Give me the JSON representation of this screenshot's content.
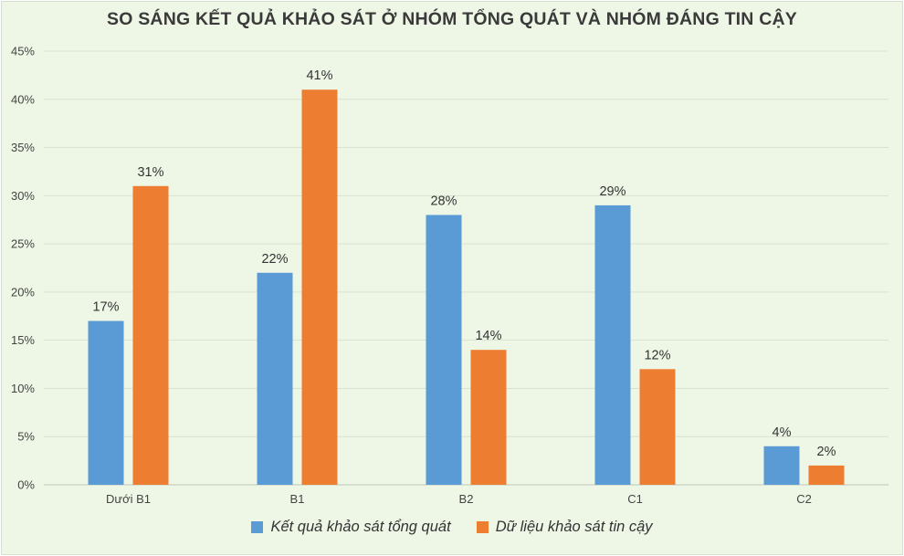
{
  "chart_data": {
    "type": "bar",
    "title": "SO SÁNG KẾT QUẢ KHẢO SÁT Ở NHÓM TỔNG QUÁT VÀ NHÓM ĐÁNG TIN CẬY",
    "categories": [
      "Dưới B1",
      "B1",
      "B2",
      "C1",
      "C2"
    ],
    "series": [
      {
        "name": "Kết quả khảo sát tổng quát",
        "values": [
          17,
          22,
          28,
          29,
          4
        ],
        "labels": [
          "17%",
          "22%",
          "28%",
          "29%",
          "4%"
        ],
        "color": "#5b9bd5"
      },
      {
        "name": "Dữ liệu khảo sát tin cậy",
        "values": [
          31,
          41,
          14,
          12,
          2
        ],
        "labels": [
          "31%",
          "41%",
          "14%",
          "12%",
          "2%"
        ],
        "color": "#ed7d31"
      }
    ],
    "ylim": [
      0,
      45
    ],
    "yticks": [
      "0%",
      "5%",
      "10%",
      "15%",
      "20%",
      "25%",
      "30%",
      "35%",
      "40%",
      "45%"
    ],
    "grid": true,
    "legend_position": "bottom",
    "xlabel": "",
    "ylabel": ""
  }
}
